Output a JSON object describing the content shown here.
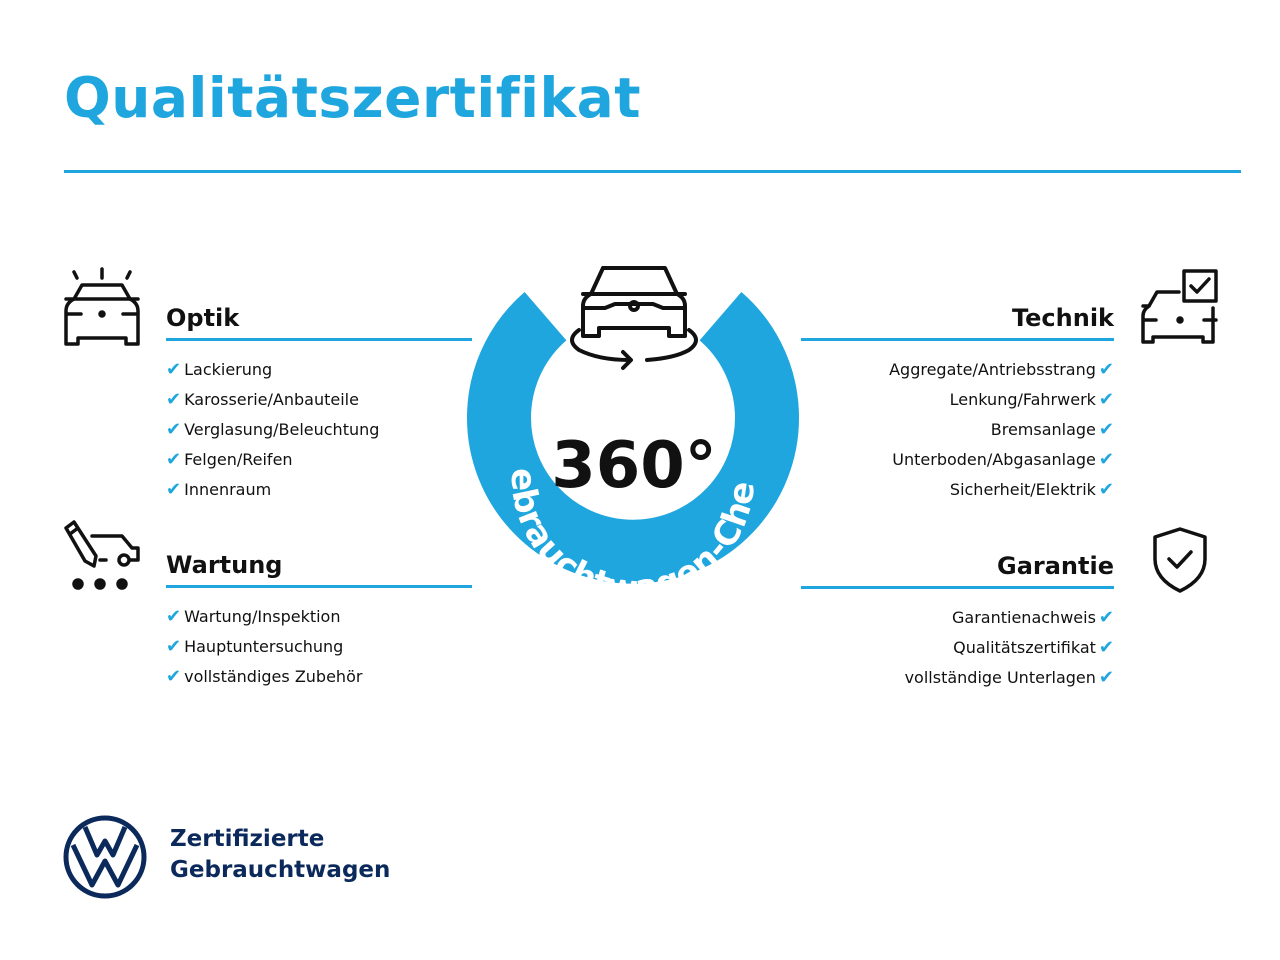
{
  "title": "Qualitätszertifikat",
  "colors": {
    "accent": "#1fa6df",
    "brand_navy": "#0b2a5b",
    "text": "#111111"
  },
  "center": {
    "degrees": "360°",
    "ring_text": "Gebrauchtwagen-Check",
    "icon": "car-rotate-icon"
  },
  "sections": {
    "optik": {
      "title": "Optik",
      "icon": "car-lights-icon",
      "items": [
        "Lackierung",
        "Karosserie/Anbauteile",
        "Verglasung/Beleuchtung",
        "Felgen/Reifen",
        "Innenraum"
      ]
    },
    "wartung": {
      "title": "Wartung",
      "icon": "service-car-icon",
      "items": [
        "Wartung/Inspektion",
        "Hauptuntersuchung",
        "vollständiges Zubehör"
      ]
    },
    "technik": {
      "title": "Technik",
      "icon": "car-checkbox-icon",
      "items": [
        "Aggregate/Antriebsstrang",
        "Lenkung/Fahrwerk",
        "Bremsanlage",
        "Unterboden/Abgasanlage",
        "Sicherheit/Elektrik"
      ]
    },
    "garantie": {
      "title": "Garantie",
      "icon": "shield-check-icon",
      "items": [
        "Garantienachweis",
        "Qualitätszertifikat",
        "vollständige Unterlagen"
      ]
    }
  },
  "check_glyph": "✔",
  "footer": {
    "line1": "Zertifizierte",
    "line2": "Gebrauchtwagen",
    "logo": "vw-logo"
  }
}
